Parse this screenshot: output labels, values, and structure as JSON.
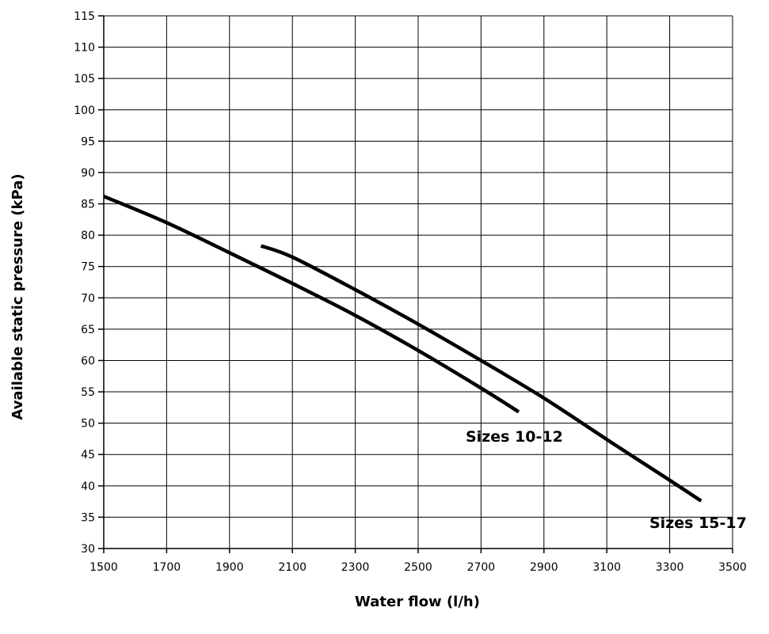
{
  "chart_data": {
    "type": "line",
    "title": "",
    "xlabel": "Water flow (l/h)",
    "ylabel": "Available static pressure (kPa)",
    "xlim": [
      1500,
      3500
    ],
    "ylim": [
      30,
      115
    ],
    "x_ticks": [
      1500,
      1700,
      1900,
      2100,
      2300,
      2500,
      2700,
      2900,
      3100,
      3300,
      3500
    ],
    "y_ticks": [
      30,
      35,
      40,
      45,
      50,
      55,
      60,
      65,
      70,
      75,
      80,
      85,
      90,
      95,
      100,
      105,
      110,
      115
    ],
    "grid": true,
    "line_color": "#000000",
    "series": [
      {
        "name": "Sizes 10-12",
        "x": [
          1500,
          1700,
          1900,
          2100,
          2300,
          2500,
          2700,
          2820
        ],
        "y": [
          86.2,
          82,
          77.2,
          72.3,
          67.2,
          61.6,
          55.6,
          51.8
        ]
      },
      {
        "name": "Sizes 15-17",
        "x": [
          2000,
          2100,
          2300,
          2500,
          2700,
          2900,
          3100,
          3300,
          3400
        ],
        "y": [
          78.3,
          76.5,
          71.3,
          65.8,
          60,
          54,
          47.4,
          40.9,
          37.6
        ]
      }
    ]
  }
}
